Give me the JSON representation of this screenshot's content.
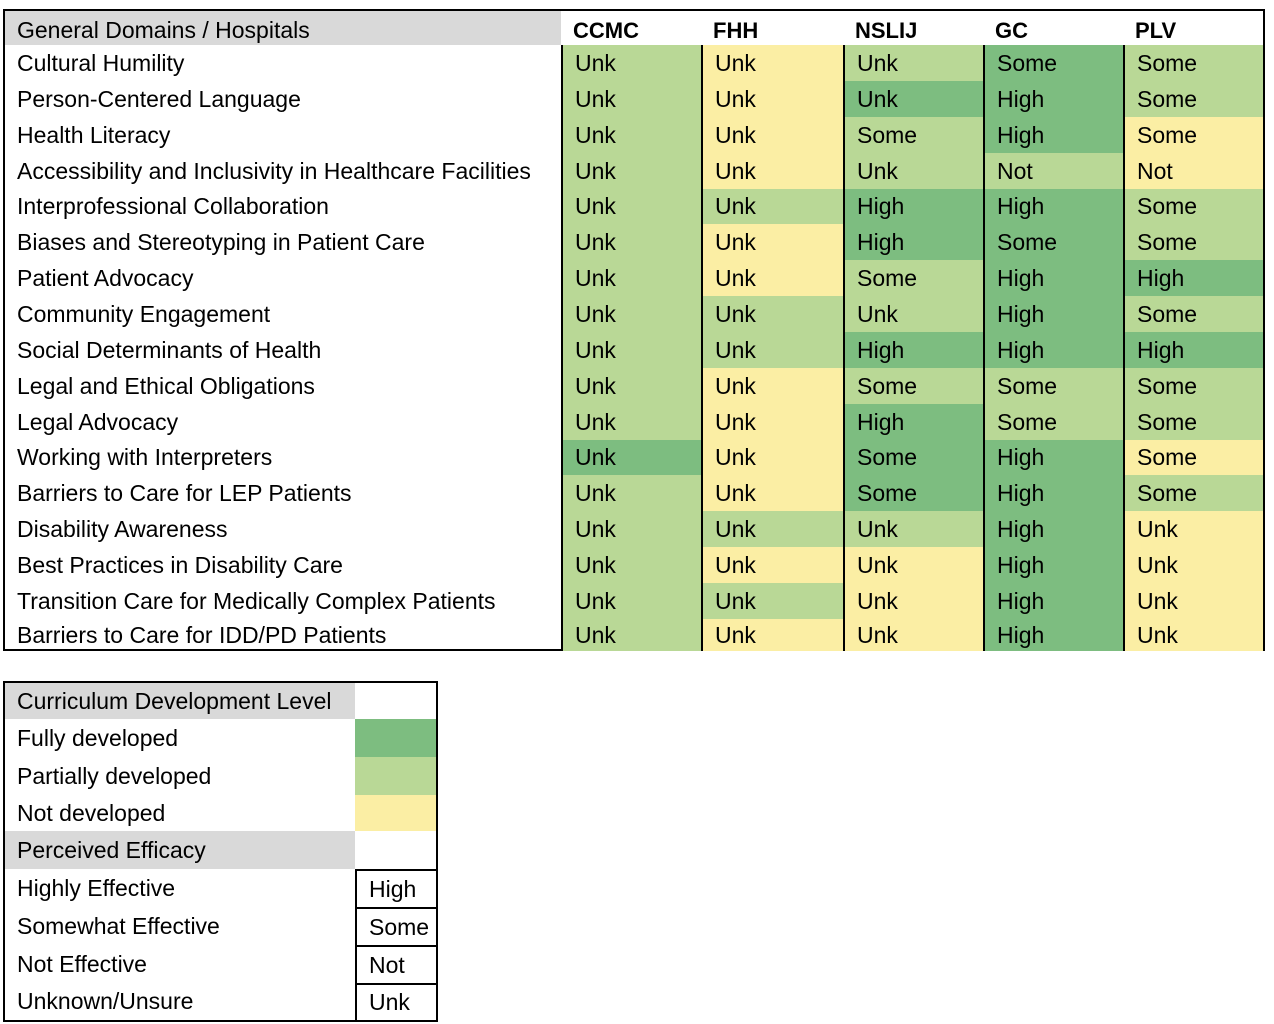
{
  "table": {
    "header": {
      "domain_label": "General Domains / Hospitals",
      "hospitals": [
        "CCMC",
        "FHH",
        "NSLIJ",
        "GC",
        "PLV"
      ]
    },
    "rows": [
      {
        "domain": "Cultural Humility",
        "cells": [
          {
            "value": "Unk",
            "level": "partial"
          },
          {
            "value": "Unk",
            "level": "not"
          },
          {
            "value": "Unk",
            "level": "partial"
          },
          {
            "value": "Some",
            "level": "full"
          },
          {
            "value": "Some",
            "level": "partial"
          }
        ]
      },
      {
        "domain": "Person-Centered Language",
        "cells": [
          {
            "value": "Unk",
            "level": "partial"
          },
          {
            "value": "Unk",
            "level": "not"
          },
          {
            "value": "Unk",
            "level": "full"
          },
          {
            "value": "High",
            "level": "full"
          },
          {
            "value": "Some",
            "level": "partial"
          }
        ]
      },
      {
        "domain": "Health Literacy",
        "cells": [
          {
            "value": "Unk",
            "level": "partial"
          },
          {
            "value": "Unk",
            "level": "not"
          },
          {
            "value": "Some",
            "level": "partial"
          },
          {
            "value": "High",
            "level": "full"
          },
          {
            "value": "Some",
            "level": "not"
          }
        ]
      },
      {
        "domain": "Accessibility and Inclusivity in Healthcare Facilities",
        "cells": [
          {
            "value": "Unk",
            "level": "partial"
          },
          {
            "value": "Unk",
            "level": "not"
          },
          {
            "value": "Unk",
            "level": "partial"
          },
          {
            "value": "Not",
            "level": "partial"
          },
          {
            "value": "Not",
            "level": "not"
          }
        ]
      },
      {
        "domain": "Interprofessional Collaboration",
        "cells": [
          {
            "value": "Unk",
            "level": "partial"
          },
          {
            "value": "Unk",
            "level": "partial"
          },
          {
            "value": "High",
            "level": "full"
          },
          {
            "value": "High",
            "level": "full"
          },
          {
            "value": "Some",
            "level": "partial"
          }
        ]
      },
      {
        "domain": "Biases and Stereotyping in Patient Care",
        "cells": [
          {
            "value": "Unk",
            "level": "partial"
          },
          {
            "value": "Unk",
            "level": "not"
          },
          {
            "value": "High",
            "level": "full"
          },
          {
            "value": "Some",
            "level": "full"
          },
          {
            "value": "Some",
            "level": "partial"
          }
        ]
      },
      {
        "domain": "Patient Advocacy",
        "cells": [
          {
            "value": "Unk",
            "level": "partial"
          },
          {
            "value": "Unk",
            "level": "not"
          },
          {
            "value": "Some",
            "level": "partial"
          },
          {
            "value": "High",
            "level": "full"
          },
          {
            "value": "High",
            "level": "full"
          }
        ]
      },
      {
        "domain": "Community Engagement",
        "cells": [
          {
            "value": "Unk",
            "level": "partial"
          },
          {
            "value": "Unk",
            "level": "partial"
          },
          {
            "value": "Unk",
            "level": "partial"
          },
          {
            "value": "High",
            "level": "full"
          },
          {
            "value": "Some",
            "level": "partial"
          }
        ]
      },
      {
        "domain": "Social Determinants of Health",
        "cells": [
          {
            "value": "Unk",
            "level": "partial"
          },
          {
            "value": "Unk",
            "level": "partial"
          },
          {
            "value": "High",
            "level": "full"
          },
          {
            "value": "High",
            "level": "full"
          },
          {
            "value": "High",
            "level": "full"
          }
        ]
      },
      {
        "domain": "Legal and Ethical Obligations",
        "cells": [
          {
            "value": "Unk",
            "level": "partial"
          },
          {
            "value": "Unk",
            "level": "not"
          },
          {
            "value": "Some",
            "level": "partial"
          },
          {
            "value": "Some",
            "level": "partial"
          },
          {
            "value": "Some",
            "level": "partial"
          }
        ]
      },
      {
        "domain": "Legal Advocacy",
        "cells": [
          {
            "value": "Unk",
            "level": "partial"
          },
          {
            "value": "Unk",
            "level": "not"
          },
          {
            "value": "High",
            "level": "full"
          },
          {
            "value": "Some",
            "level": "partial"
          },
          {
            "value": "Some",
            "level": "partial"
          }
        ]
      },
      {
        "domain": "Working with Interpreters",
        "cells": [
          {
            "value": "Unk",
            "level": "full"
          },
          {
            "value": "Unk",
            "level": "not"
          },
          {
            "value": "Some",
            "level": "full"
          },
          {
            "value": "High",
            "level": "full"
          },
          {
            "value": "Some",
            "level": "not"
          }
        ]
      },
      {
        "domain": "Barriers to Care for LEP Patients",
        "cells": [
          {
            "value": "Unk",
            "level": "partial"
          },
          {
            "value": "Unk",
            "level": "not"
          },
          {
            "value": "Some",
            "level": "full"
          },
          {
            "value": "High",
            "level": "full"
          },
          {
            "value": "Some",
            "level": "partial"
          }
        ]
      },
      {
        "domain": "Disability Awareness",
        "cells": [
          {
            "value": "Unk",
            "level": "partial"
          },
          {
            "value": "Unk",
            "level": "partial"
          },
          {
            "value": "Unk",
            "level": "partial"
          },
          {
            "value": "High",
            "level": "full"
          },
          {
            "value": "Unk",
            "level": "not"
          }
        ]
      },
      {
        "domain": "Best Practices in Disability Care",
        "cells": [
          {
            "value": "Unk",
            "level": "partial"
          },
          {
            "value": "Unk",
            "level": "not"
          },
          {
            "value": "Unk",
            "level": "not"
          },
          {
            "value": "High",
            "level": "full"
          },
          {
            "value": "Unk",
            "level": "not"
          }
        ]
      },
      {
        "domain": "Transition Care for Medically Complex Patients",
        "cells": [
          {
            "value": "Unk",
            "level": "partial"
          },
          {
            "value": "Unk",
            "level": "partial"
          },
          {
            "value": "Unk",
            "level": "not"
          },
          {
            "value": "High",
            "level": "full"
          },
          {
            "value": "Unk",
            "level": "not"
          }
        ]
      },
      {
        "domain": "Barriers to Care for IDD/PD Patients",
        "cells": [
          {
            "value": "Unk",
            "level": "partial"
          },
          {
            "value": "Unk",
            "level": "not"
          },
          {
            "value": "Unk",
            "level": "not"
          },
          {
            "value": "High",
            "level": "full"
          },
          {
            "value": "Unk",
            "level": "not"
          }
        ]
      }
    ]
  },
  "colors": {
    "full": "#7dbd80",
    "partial": "#b9d896",
    "not": "#fbeea4",
    "header_gray": "#d9d9d9"
  },
  "legend": {
    "development_title": "Curriculum Development Level",
    "development_levels": [
      {
        "label": "Fully developed",
        "level": "full"
      },
      {
        "label": "Partially developed",
        "level": "partial"
      },
      {
        "label": "Not developed",
        "level": "not"
      }
    ],
    "efficacy_title": "Perceived Efficacy",
    "efficacy_levels": [
      {
        "label": "Highly Effective",
        "code": "High"
      },
      {
        "label": "Somewhat Effective",
        "code": "Some"
      },
      {
        "label": "Not Effective",
        "code": "Not"
      },
      {
        "label": "Unknown/Unsure",
        "code": "Unk"
      }
    ]
  }
}
